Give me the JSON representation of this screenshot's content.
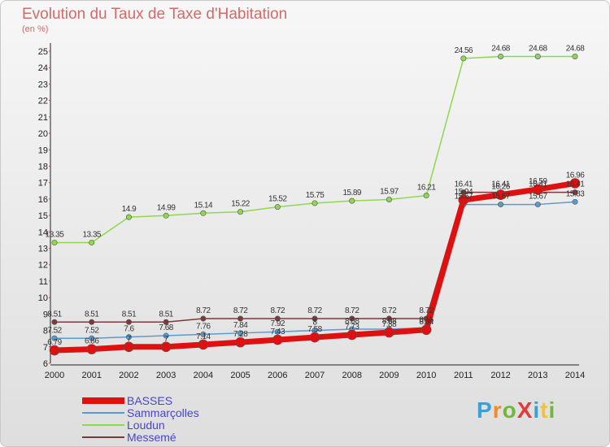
{
  "title": "Evolution du Taux de Taxe d'Habitation",
  "subtitle": "(en %)",
  "logo": {
    "text": "ProXiti",
    "letter_colors": [
      "#3aa0d8",
      "#f08a2a",
      "#6fb83a",
      "#e23a3a",
      "#3aa0d8",
      "#f0c23a",
      "#6fb83a"
    ]
  },
  "chart_data": {
    "type": "line",
    "title": "Evolution du Taux de Taxe d'Habitation",
    "ylabel": "(en %)",
    "ylim": [
      6,
      25
    ],
    "grid": false,
    "legend_position": "bottom-left",
    "x": [
      "2000",
      "2001",
      "2002",
      "2003",
      "2004",
      "2005",
      "2006",
      "2007",
      "2008",
      "2009",
      "2010",
      "2011",
      "2012",
      "2013",
      "2014"
    ],
    "y_ticks": [
      "6",
      "7",
      "8",
      "9",
      "10",
      "11",
      "12",
      "13",
      "14",
      "15",
      "16",
      "17",
      "18",
      "19",
      "20",
      "21",
      "22",
      "23",
      "24",
      "25"
    ],
    "series": [
      {
        "name": "BASSES",
        "color": "#e01010",
        "width": 7,
        "values": [
          6.79,
          6.86,
          7.0,
          7.0,
          7.14,
          7.28,
          7.43,
          7.58,
          7.73,
          7.88,
          8.04,
          15.94,
          16.26,
          16.59,
          16.96
        ],
        "labels": [
          "6.79",
          "6.86",
          "7",
          "7",
          "7.14",
          "7.28",
          "7.43",
          "7.58",
          "7.73",
          "7.88",
          "8.04",
          "15.94",
          "16.26",
          "16.59",
          "16.96"
        ]
      },
      {
        "name": "Sammarçolles",
        "color": "#5a9ad0",
        "width": 1.5,
        "values": [
          7.52,
          7.52,
          7.6,
          7.68,
          7.76,
          7.84,
          7.92,
          8.0,
          8.08,
          8.08,
          8.16,
          15.67,
          15.67,
          15.67,
          15.83
        ],
        "labels": [
          "7.52",
          "7.52",
          "7.6",
          "7.68",
          "7.76",
          "7.84",
          "7.92",
          "8",
          "8.08",
          "8.08",
          "8.16",
          "15.67",
          "15.67",
          "15.67",
          "15.83"
        ]
      },
      {
        "name": "Loudun",
        "color": "#8ed84e",
        "width": 1.5,
        "values": [
          13.35,
          13.35,
          14.9,
          14.99,
          15.14,
          15.22,
          15.52,
          15.75,
          15.89,
          15.97,
          16.21,
          24.56,
          24.68,
          24.68,
          24.68
        ],
        "labels": [
          "13.35",
          "13.35",
          "14.9",
          "14.99",
          "15.14",
          "15.22",
          "15.52",
          "15.75",
          "15.89",
          "15.97",
          "16.21",
          "24.56",
          "24.68",
          "24.68",
          "24.68"
        ]
      },
      {
        "name": "Messemé",
        "color": "#7a3a3a",
        "width": 1.5,
        "values": [
          8.51,
          8.51,
          8.51,
          8.51,
          8.72,
          8.72,
          8.72,
          8.72,
          8.72,
          8.72,
          8.72,
          16.41,
          16.41,
          16.41,
          16.41
        ],
        "labels": [
          "8.51",
          "8.51",
          "8.51",
          "8.51",
          "8.72",
          "8.72",
          "8.72",
          "8.72",
          "8.72",
          "8.72",
          "8.72",
          "16.41",
          "16.41",
          "16.41",
          "16.41"
        ]
      }
    ]
  }
}
